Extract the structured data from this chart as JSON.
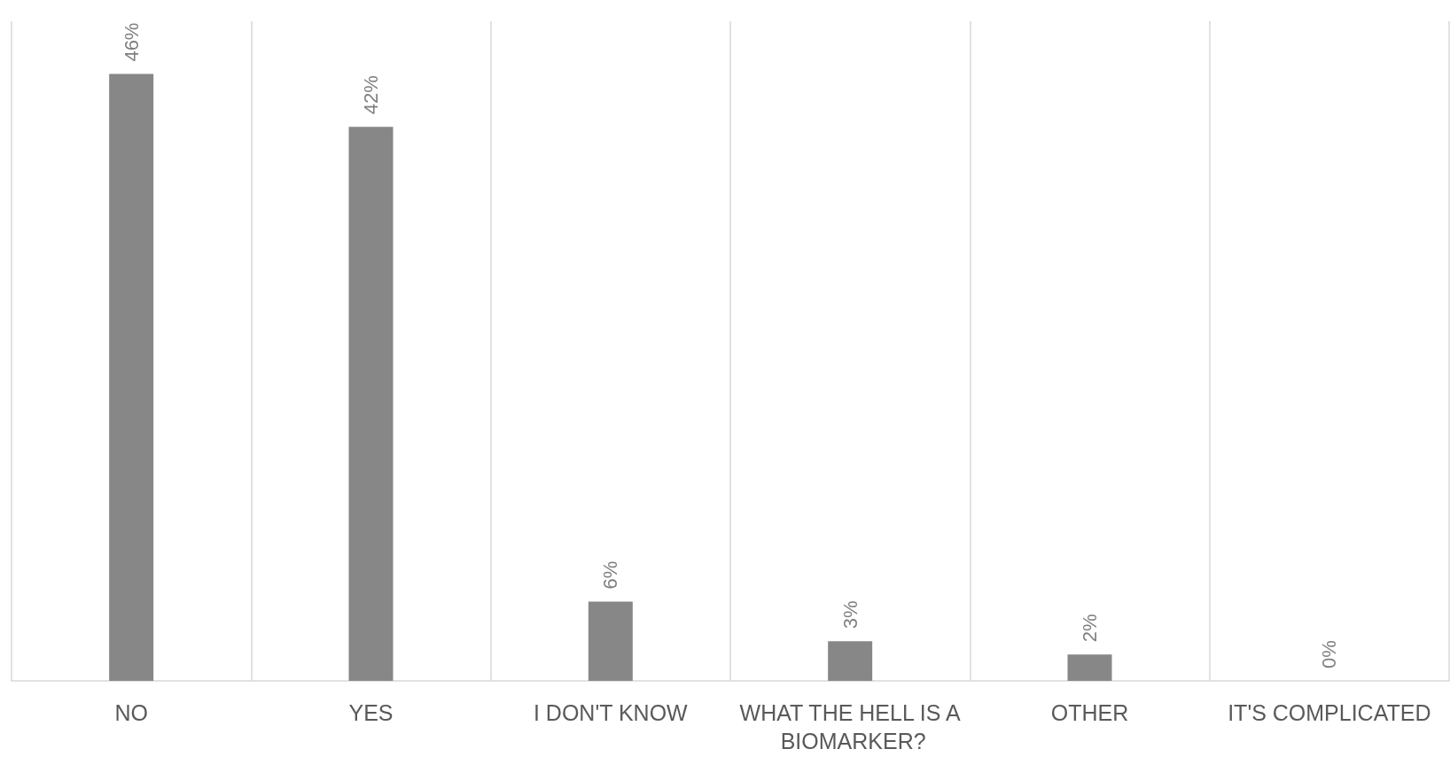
{
  "chart_data": {
    "type": "bar",
    "categories": [
      "NO",
      "YES",
      "I DON'T KNOW",
      "WHAT THE HELL IS A BIOMARKER?",
      "OTHER",
      "IT'S COMPLICATED"
    ],
    "values": [
      46,
      42,
      6,
      3,
      2,
      0
    ],
    "value_labels": [
      "46%",
      "42%",
      "6%",
      "3%",
      "2%",
      "0%"
    ],
    "color": "#878787",
    "grid": "x",
    "tick_labels": "x"
  }
}
